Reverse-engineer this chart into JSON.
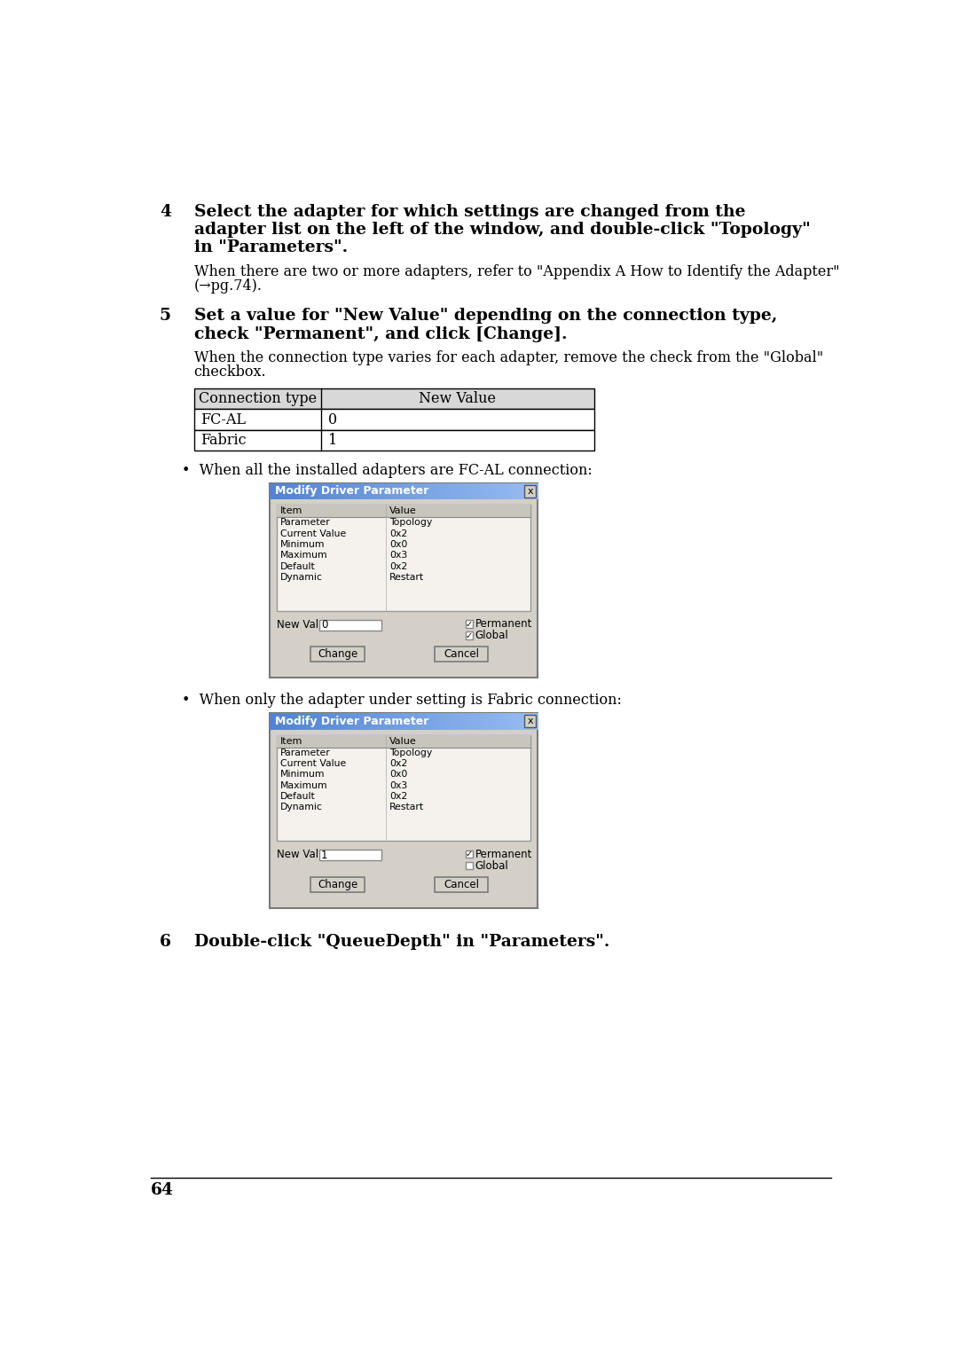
{
  "page_number": "64",
  "bg_color": "#ffffff",
  "step4": {
    "number": "4",
    "bold_lines": [
      "Select the adapter for which settings are changed from the",
      "adapter list on the left of the window, and double-click \"Topology\"",
      "in \"Parameters\"."
    ],
    "normal_lines": [
      "When there are two or more adapters, refer to \"Appendix A How to Identify the Adapter\"",
      "(→pg.74)."
    ]
  },
  "step5": {
    "number": "5",
    "bold_lines": [
      "Set a value for \"New Value\" depending on the connection type,",
      "check \"Permanent\", and click [Change]."
    ],
    "normal_lines": [
      "When the connection type varies for each adapter, remove the check from the \"Global\"",
      "checkbox."
    ]
  },
  "table": {
    "header": [
      "Connection type",
      "New Value"
    ],
    "rows": [
      [
        "FC-AL",
        "0"
      ],
      [
        "Fabric",
        "1"
      ]
    ]
  },
  "bullet1": "When all the installed adapters are FC-AL connection:",
  "bullet2": "When only the adapter under setting is Fabric connection:",
  "dialog1": {
    "title": "Modify Driver Parameter",
    "items": [
      [
        "Parameter",
        "Topology"
      ],
      [
        "Current Value",
        "0x2"
      ],
      [
        "Minimum",
        "0x0"
      ],
      [
        "Maximum",
        "0x3"
      ],
      [
        "Default",
        "0x2"
      ],
      [
        "Dynamic",
        "Restart"
      ]
    ],
    "new_value": "0",
    "permanent_checked": true,
    "global_checked": true
  },
  "dialog2": {
    "title": "Modify Driver Parameter",
    "items": [
      [
        "Parameter",
        "Topology"
      ],
      [
        "Current Value",
        "0x2"
      ],
      [
        "Minimum",
        "0x0"
      ],
      [
        "Maximum",
        "0x3"
      ],
      [
        "Default",
        "0x2"
      ],
      [
        "Dynamic",
        "Restart"
      ]
    ],
    "new_value": "1",
    "permanent_checked": true,
    "global_checked": false
  },
  "step6": {
    "number": "6",
    "bold_text": "Double-click \"QueueDepth\" in \"Parameters\"."
  }
}
